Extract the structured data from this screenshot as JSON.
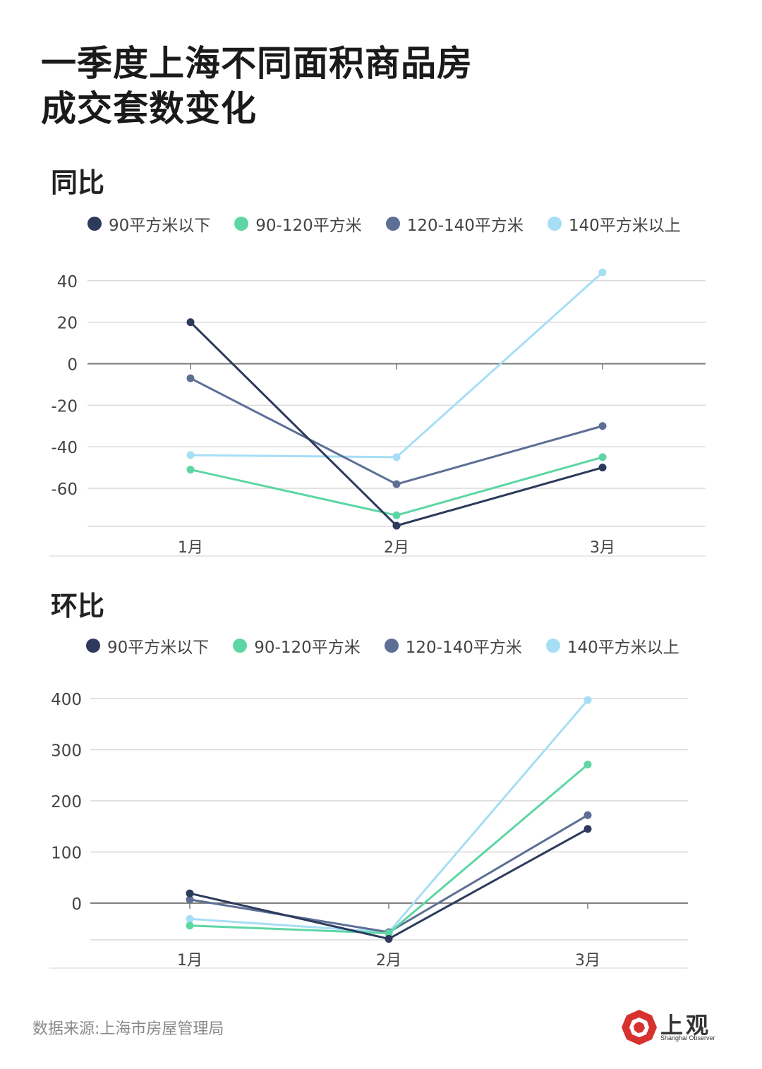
{
  "title_lines": [
    "一季度上海不同面积商品房",
    "成交套数变化"
  ],
  "source": "数据来源:上海市房屋管理局",
  "logo": {
    "cn": "上观",
    "en": "Shanghai Observer",
    "icon": "shanghai-observer-logo-icon"
  },
  "colors": {
    "90平方米以下": "#2d3a5c",
    "90-120平方米": "#5dd6a4",
    "120-140平方米": "#5d6f95",
    "140平方米以上": "#a6def5"
  },
  "chart_data": [
    {
      "type": "line",
      "title": "同比",
      "categories": [
        "1月",
        "2月",
        "3月"
      ],
      "yticks": [
        40,
        20,
        0,
        -20,
        -40,
        -60
      ],
      "ylim": [
        -78,
        44
      ],
      "grid": true,
      "legend_position": "top",
      "series": [
        {
          "name": "90平方米以下",
          "color": "#2d3a5c",
          "values": [
            20,
            -78,
            -50
          ]
        },
        {
          "name": "90-120平方米",
          "color": "#5dd6a4",
          "values": [
            -51,
            -73,
            -45
          ]
        },
        {
          "name": "120-140平方米",
          "color": "#5d6f95",
          "values": [
            -7,
            -58,
            -30
          ]
        },
        {
          "name": "140平方米以上",
          "color": "#a6def5",
          "values": [
            -44,
            -45,
            44
          ]
        }
      ]
    },
    {
      "type": "line",
      "title": "环比",
      "categories": [
        "1月",
        "2月",
        "3月"
      ],
      "yticks": [
        400,
        300,
        200,
        100,
        0
      ],
      "ylim": [
        -72,
        400
      ],
      "grid": true,
      "legend_position": "top",
      "series": [
        {
          "name": "90平方米以下",
          "color": "#2d3a5c",
          "values": [
            19,
            -70,
            145
          ]
        },
        {
          "name": "90-120平方米",
          "color": "#5dd6a4",
          "values": [
            -44,
            -59,
            271
          ]
        },
        {
          "name": "120-140平方米",
          "color": "#5d6f95",
          "values": [
            7,
            -57,
            172
          ]
        },
        {
          "name": "140平方米以上",
          "color": "#a6def5",
          "values": [
            -31,
            -57,
            397
          ]
        }
      ]
    }
  ]
}
